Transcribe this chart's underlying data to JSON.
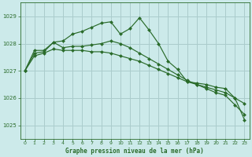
{
  "title": "Graphe pression niveau de la mer (hPa)",
  "background_color": "#cceaea",
  "grid_color": "#aacccc",
  "line_color": "#2a6b2a",
  "xlim": [
    -0.5,
    23.5
  ],
  "ylim": [
    1024.5,
    1029.5
  ],
  "yticks": [
    1025,
    1026,
    1027,
    1028,
    1029
  ],
  "xticks": [
    0,
    1,
    2,
    3,
    4,
    5,
    6,
    7,
    8,
    9,
    10,
    11,
    12,
    13,
    14,
    15,
    16,
    17,
    18,
    19,
    20,
    21,
    22,
    23
  ],
  "series": [
    [
      1027.0,
      1027.55,
      1027.65,
      1027.8,
      1027.75,
      1027.75,
      1027.75,
      1027.7,
      1027.7,
      1027.65,
      1027.55,
      1027.45,
      1027.35,
      1027.2,
      1027.05,
      1026.9,
      1026.75,
      1026.6,
      1026.5,
      1026.4,
      1026.3,
      1026.2,
      1026.0,
      1025.8
    ],
    [
      1027.0,
      1027.75,
      1027.75,
      1028.05,
      1028.1,
      1028.35,
      1028.45,
      1028.6,
      1028.75,
      1028.8,
      1028.35,
      1028.55,
      1028.95,
      1028.5,
      1028.0,
      1027.35,
      1027.05,
      1026.6,
      1026.55,
      1026.5,
      1026.4,
      1026.35,
      1026.0,
      1025.2
    ],
    [
      1027.0,
      1027.65,
      1027.7,
      1028.05,
      1027.85,
      1027.9,
      1027.9,
      1027.95,
      1028.0,
      1028.1,
      1028.0,
      1027.85,
      1027.65,
      1027.45,
      1027.25,
      1027.05,
      1026.85,
      1026.65,
      1026.5,
      1026.35,
      1026.2,
      1026.1,
      1025.75,
      1025.4
    ]
  ]
}
